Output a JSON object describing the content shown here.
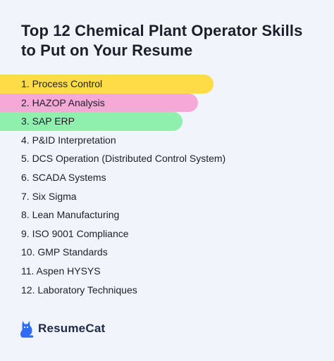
{
  "title": "Top 12 Chemical Plant Operator Skills to Put on Your Resume",
  "skills": [
    "1. Process Control",
    "2. HAZOP Analysis",
    "3. SAP ERP",
    "4. P&ID Interpretation",
    "5. DCS Operation (Distributed Control System)",
    "6. SCADA Systems",
    "7. Six Sigma",
    "8. Lean Manufacturing",
    "9. ISO 9001 Compliance",
    "10. GMP Standards",
    "11. Aspen HYSYS",
    "12. Laboratory Techniques"
  ],
  "highlight_colors": [
    "#fddc47",
    "#f6a8d6",
    "#8ff0ad"
  ],
  "brand": {
    "name": "ResumeCat",
    "icon": "cat-icon",
    "color": "#2f6bf5"
  }
}
